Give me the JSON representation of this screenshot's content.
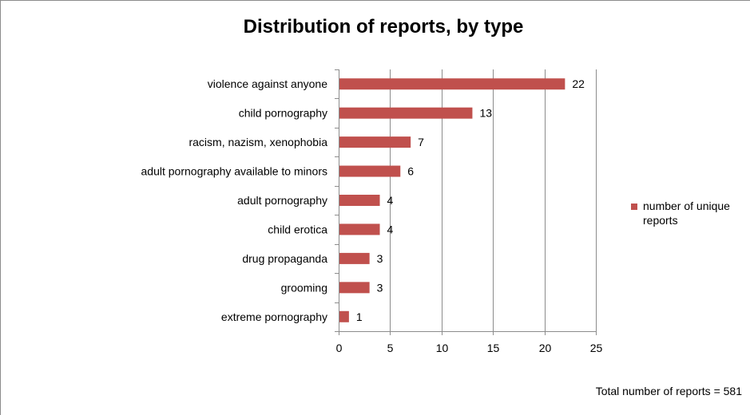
{
  "chart_data": {
    "type": "bar",
    "orientation": "horizontal",
    "title": "Distribution of reports, by type",
    "categories": [
      "violence against anyone",
      "child pornography",
      "racism, nazism, xenophobia",
      "adult pornography available to minors",
      "adult pornography",
      "child erotica",
      "drug propaganda",
      "grooming",
      "extreme pornography"
    ],
    "series": [
      {
        "name": "number of unique reports",
        "values": [
          22,
          13,
          7,
          6,
          4,
          4,
          3,
          3,
          1
        ]
      }
    ],
    "xlim": [
      0,
      25
    ],
    "x_ticks": [
      0,
      5,
      10,
      15,
      20,
      25
    ],
    "xlabel": "",
    "ylabel": "",
    "grid": "vertical",
    "legend": "right",
    "bar_color": "#c0504d",
    "data_labels": true
  },
  "footnote": "Total number of reports = 581"
}
